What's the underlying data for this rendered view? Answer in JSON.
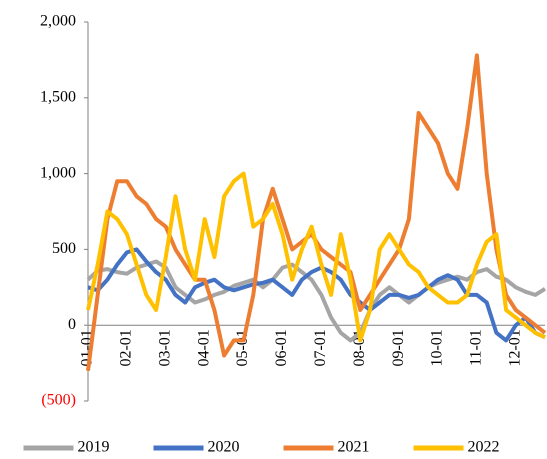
{
  "chart_data": {
    "type": "line",
    "categories": [
      "01-01",
      null,
      null,
      null,
      "02-01",
      null,
      null,
      null,
      "03-01",
      null,
      null,
      null,
      "04-01",
      null,
      null,
      null,
      "05-01",
      null,
      null,
      null,
      "06-01",
      null,
      null,
      null,
      "07-01",
      null,
      null,
      null,
      "08-01",
      null,
      null,
      null,
      "09-01",
      null,
      null,
      null,
      "10-01",
      null,
      null,
      null,
      "11-01",
      null,
      null,
      null,
      "12-01",
      null,
      null,
      null
    ],
    "series": [
      {
        "name": "2019",
        "color": "#a5a5a5",
        "values": [
          300,
          360,
          370,
          350,
          340,
          380,
          400,
          420,
          380,
          250,
          200,
          150,
          170,
          200,
          220,
          260,
          280,
          300,
          250,
          300,
          380,
          400,
          350,
          300,
          200,
          50,
          -50,
          -100,
          -50,
          100,
          200,
          250,
          200,
          150,
          200,
          250,
          280,
          300,
          320,
          300,
          350,
          370,
          320,
          300,
          250,
          220,
          200,
          240
        ]
      },
      {
        "name": "2020",
        "color": "#4472c4",
        "values": [
          250,
          230,
          300,
          400,
          480,
          500,
          420,
          350,
          300,
          200,
          150,
          250,
          280,
          300,
          250,
          230,
          250,
          270,
          280,
          300,
          250,
          200,
          300,
          350,
          380,
          350,
          300,
          200,
          150,
          100,
          150,
          200,
          200,
          180,
          200,
          250,
          300,
          330,
          300,
          200,
          200,
          150,
          -50,
          -100,
          0,
          50,
          -50,
          -80
        ]
      },
      {
        "name": "2021",
        "color": "#ed7d31",
        "values": [
          -300,
          200,
          700,
          950,
          950,
          850,
          800,
          700,
          650,
          500,
          400,
          300,
          300,
          100,
          -200,
          -100,
          -100,
          200,
          700,
          900,
          700,
          500,
          550,
          600,
          500,
          450,
          400,
          350,
          100,
          200,
          300,
          400,
          500,
          700,
          1400,
          1300,
          1200,
          1000,
          900,
          1300,
          1780,
          1000,
          500,
          200,
          100,
          50,
          0,
          -50
        ]
      },
      {
        "name": "2022",
        "color": "#ffc000",
        "values": [
          100,
          400,
          750,
          700,
          600,
          400,
          200,
          100,
          450,
          850,
          500,
          300,
          700,
          450,
          850,
          950,
          1000,
          650,
          700,
          800,
          600,
          300,
          500,
          650,
          400,
          200,
          600,
          300,
          -100,
          100,
          500,
          600,
          500,
          400,
          350,
          250,
          200,
          150,
          150,
          200,
          400,
          550,
          600,
          100,
          50,
          0,
          -50,
          -80
        ]
      }
    ],
    "ylim": [
      -500,
      2000
    ],
    "yticks": [
      {
        "value": -500,
        "label": "(500)"
      },
      0,
      500,
      {
        "value": 1000,
        "label": "1,000"
      },
      {
        "value": 1500,
        "label": "1,500"
      },
      {
        "value": 2000,
        "label": "2,000"
      }
    ],
    "negative_tick_color": "#ff0000",
    "grid": false,
    "legend": "bottom"
  }
}
